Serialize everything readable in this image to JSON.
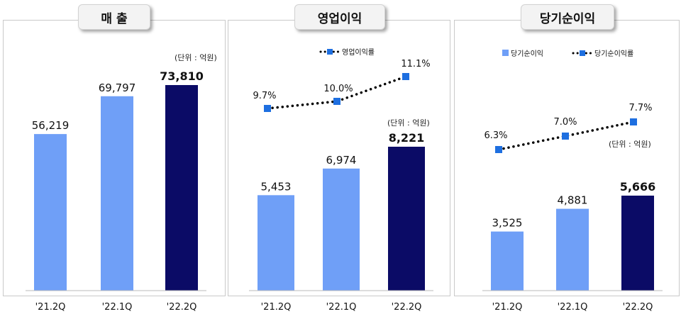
{
  "unit_label": "(단위 : 억원)",
  "colors": {
    "light_bar": "#6f9ff7",
    "dark_bar": "#0b0b66",
    "marker": "#1e6fe0"
  },
  "chart_data": [
    {
      "type": "bar",
      "title": "매 출",
      "categories": [
        "'21.2Q",
        "'22.1Q",
        "'22.2Q"
      ],
      "values": [
        56219,
        69797,
        73810
      ],
      "value_labels": [
        "56,219",
        "69,797",
        "73,810"
      ],
      "unit": "(단위 : 억원)"
    },
    {
      "type": "bar",
      "title": "영업이익",
      "categories": [
        "'21.2Q",
        "'22.1Q",
        "'22.2Q"
      ],
      "values": [
        5453,
        6974,
        8221
      ],
      "value_labels": [
        "5,453",
        "6,974",
        "8,221"
      ],
      "unit": "(단위 : 억원)",
      "line_series": {
        "name": "영업이익률",
        "values": [
          9.7,
          10.0,
          11.1
        ],
        "labels": [
          "9.7%",
          "10.0%",
          "11.1%"
        ]
      },
      "legend": [
        "영업이익률"
      ]
    },
    {
      "type": "bar",
      "title": "당기순이익",
      "categories": [
        "'21.2Q",
        "'22.1Q",
        "'22.2Q"
      ],
      "values": [
        3525,
        4881,
        5666
      ],
      "value_labels": [
        "3,525",
        "4,881",
        "5,666"
      ],
      "unit": "(단위 : 억원)",
      "bar_series_name": "당기순이익",
      "line_series": {
        "name": "당기순이익률",
        "values": [
          6.3,
          7.0,
          7.7
        ],
        "labels": [
          "6.3%",
          "7.0%",
          "7.7%"
        ]
      },
      "legend": [
        "당기순이익",
        "당기순이익률"
      ]
    }
  ]
}
